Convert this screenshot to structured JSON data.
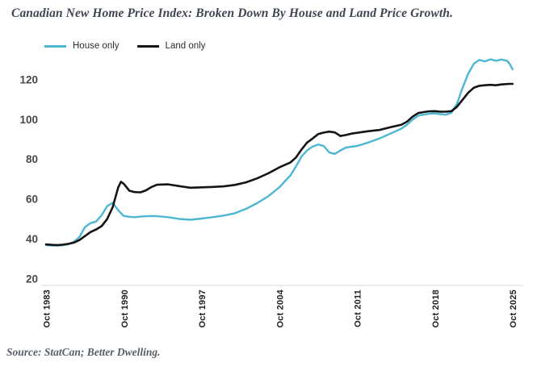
{
  "title": "Canadian New Home Price Index: Broken Down By House and Land Price Growth.",
  "source": "Source: StatCan; Better Dwelling.",
  "legend": [
    {
      "label": "House only",
      "color": "#4db6d2"
    },
    {
      "label": "Land only",
      "color": "#141414"
    }
  ],
  "colors": {
    "house_line": "#4db6d2",
    "land_line": "#141414",
    "axis_line": "#d9d9d9",
    "title_text": "#3f4650",
    "background": "#ffffff"
  },
  "chart_data": {
    "type": "line",
    "title": "Canadian New Home Price Index: Broken Down By House and Land Price Growth.",
    "xlabel": "",
    "ylabel": "",
    "legend_position": "top-left",
    "grid": false,
    "y_ticks": [
      20,
      40,
      60,
      80,
      100,
      120
    ],
    "x_ticks": [
      {
        "label": "Oct 1983",
        "year": 1983.75
      },
      {
        "label": "Oct 1990",
        "year": 1990.75
      },
      {
        "label": "Oct 1997",
        "year": 1997.75
      },
      {
        "label": "Oct 2004",
        "year": 2004.75
      },
      {
        "label": "Oct 2011",
        "year": 2011.75
      },
      {
        "label": "Oct 2018",
        "year": 2018.75
      },
      {
        "label": "Oct 2025",
        "year": 2025.75
      }
    ],
    "xlim": [
      1983.75,
      2026.5
    ],
    "ylim": [
      17.5,
      135
    ],
    "x": [
      1983.75,
      1984.25,
      1984.75,
      1985.25,
      1985.75,
      1986.25,
      1986.75,
      1987.25,
      1987.75,
      1988.25,
      1988.75,
      1989.25,
      1989.75,
      1990.25,
      1990.5,
      1990.75,
      1991.25,
      1991.75,
      1992.25,
      1992.75,
      1993.25,
      1993.75,
      1994.75,
      1995.75,
      1996.75,
      1997.75,
      1998.75,
      1999.75,
      2000.75,
      2001.75,
      2002.75,
      2003.75,
      2004.75,
      2005.75,
      2006.25,
      2006.75,
      2007.25,
      2007.75,
      2008.25,
      2008.75,
      2009.25,
      2009.75,
      2010.25,
      2010.75,
      2011.25,
      2011.75,
      2012.75,
      2013.75,
      2014.75,
      2015.75,
      2016.25,
      2016.75,
      2017.25,
      2017.75,
      2018.25,
      2018.75,
      2019.25,
      2019.75,
      2020.25,
      2020.75,
      2021.25,
      2021.75,
      2022.25,
      2022.75,
      2023.25,
      2023.75,
      2024.25,
      2024.75,
      2025.25,
      2025.5,
      2025.75
    ],
    "series": [
      {
        "name": "House only",
        "color": "#4db6d2",
        "values": [
          37.0,
          36.8,
          36.7,
          36.9,
          37.4,
          38.6,
          41.0,
          46.0,
          48.0,
          48.8,
          52.0,
          56.5,
          58.2,
          54.5,
          53.0,
          51.6,
          51.2,
          51.0,
          51.3,
          51.5,
          51.6,
          51.5,
          51.0,
          50.1,
          49.7,
          50.3,
          51.0,
          51.8,
          53.0,
          55.2,
          58.0,
          61.5,
          66.0,
          72.0,
          76.5,
          81.5,
          84.5,
          86.5,
          87.5,
          86.8,
          83.5,
          82.8,
          84.5,
          86.0,
          86.4,
          86.8,
          88.5,
          90.5,
          93.0,
          95.5,
          97.5,
          100.0,
          102.0,
          102.5,
          103.0,
          103.2,
          102.8,
          102.5,
          103.5,
          108.0,
          116.0,
          123.0,
          128.0,
          130.0,
          129.3,
          130.3,
          129.6,
          130.2,
          129.6,
          128.0,
          125.3
        ]
      },
      {
        "name": "Land only",
        "color": "#141414",
        "values": [
          37.3,
          37.1,
          37.0,
          37.2,
          37.6,
          38.2,
          39.5,
          41.5,
          43.5,
          44.8,
          46.5,
          50.0,
          56.0,
          66.0,
          68.8,
          67.8,
          64.3,
          63.6,
          63.5,
          64.5,
          66.2,
          67.3,
          67.5,
          66.6,
          65.8,
          66.0,
          66.2,
          66.5,
          67.2,
          68.5,
          70.5,
          73.0,
          76.0,
          78.5,
          81.0,
          85.0,
          88.5,
          90.5,
          92.8,
          93.5,
          94.0,
          93.6,
          91.8,
          92.3,
          93.0,
          93.4,
          94.2,
          94.8,
          96.2,
          97.5,
          99.0,
          101.5,
          103.3,
          103.8,
          104.2,
          104.3,
          104.0,
          104.0,
          104.3,
          106.5,
          110.0,
          113.5,
          116.0,
          117.0,
          117.3,
          117.5,
          117.3,
          117.7,
          117.9,
          118.0,
          118.0
        ]
      }
    ]
  }
}
